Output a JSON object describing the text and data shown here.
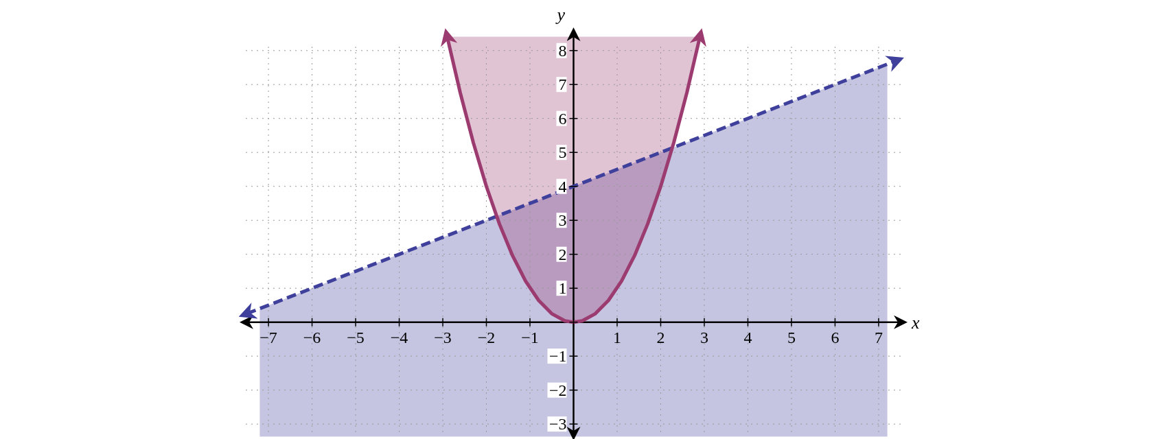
{
  "chart_data": {
    "type": "line",
    "xlabel": "x",
    "ylabel": "y",
    "xlim": [
      -7.6,
      7.6
    ],
    "ylim": [
      -3.4,
      8.6
    ],
    "xticks": [
      {
        "value": -7,
        "label": "−7"
      },
      {
        "value": -6,
        "label": "−6"
      },
      {
        "value": -5,
        "label": "−5"
      },
      {
        "value": -4,
        "label": "−4"
      },
      {
        "value": -3,
        "label": "−3"
      },
      {
        "value": -2,
        "label": "−2"
      },
      {
        "value": -1,
        "label": "−1"
      },
      {
        "value": 0,
        "label": null
      },
      1,
      2,
      3,
      4,
      5,
      6,
      7
    ],
    "yticks": [
      {
        "value": -3,
        "label": "−3"
      },
      {
        "value": -2,
        "label": "−2"
      },
      {
        "value": -1,
        "label": "−1"
      },
      {
        "value": 0,
        "label": null
      },
      1,
      2,
      3,
      4,
      5,
      6,
      7,
      8
    ],
    "grid": true,
    "series": [
      {
        "color": "#3f3f9c",
        "line_style": "dashed",
        "x": [
          -7.5,
          -7.2,
          0,
          7.2,
          7.4
        ],
        "values": [
          0.25,
          0.4,
          4,
          7.6,
          7.7
        ],
        "lower": [
          null,
          -3.37,
          -3.37,
          -3.37,
          null
        ],
        "upper": [
          null,
          0.4,
          4,
          7.6,
          null
        ]
      },
      {
        "color": "#9b3b70",
        "line_style": "solid",
        "x": [
          -2.9,
          -2.6,
          -2.3,
          -2,
          -1.7,
          -1.4,
          -1.1,
          -0.8,
          -0.5,
          -0.2,
          0,
          0.2,
          0.5,
          0.8,
          1.1,
          1.4,
          1.7,
          2,
          2.3,
          2.6,
          2.9
        ],
        "values": [
          8.41,
          6.76,
          5.29,
          4,
          2.89,
          1.96,
          1.21,
          0.64,
          0.25,
          0.04,
          0,
          0.04,
          0.25,
          0.64,
          1.21,
          1.96,
          2.89,
          4,
          5.29,
          6.76,
          8.41
        ],
        "lower": [
          8.41,
          6.76,
          5.29,
          4,
          2.89,
          1.96,
          1.21,
          0.64,
          0.25,
          0.04,
          0,
          0.04,
          0.25,
          0.64,
          1.21,
          1.96,
          2.89,
          4,
          5.29,
          6.76,
          8.41
        ],
        "upper": [
          8.41,
          8.41,
          8.41,
          8.41,
          8.41,
          8.41,
          8.41,
          8.41,
          8.41,
          8.41,
          8.41,
          8.41,
          8.41,
          8.41,
          8.41,
          8.41,
          8.41,
          8.41,
          8.41,
          8.41,
          8.41
        ]
      }
    ]
  }
}
